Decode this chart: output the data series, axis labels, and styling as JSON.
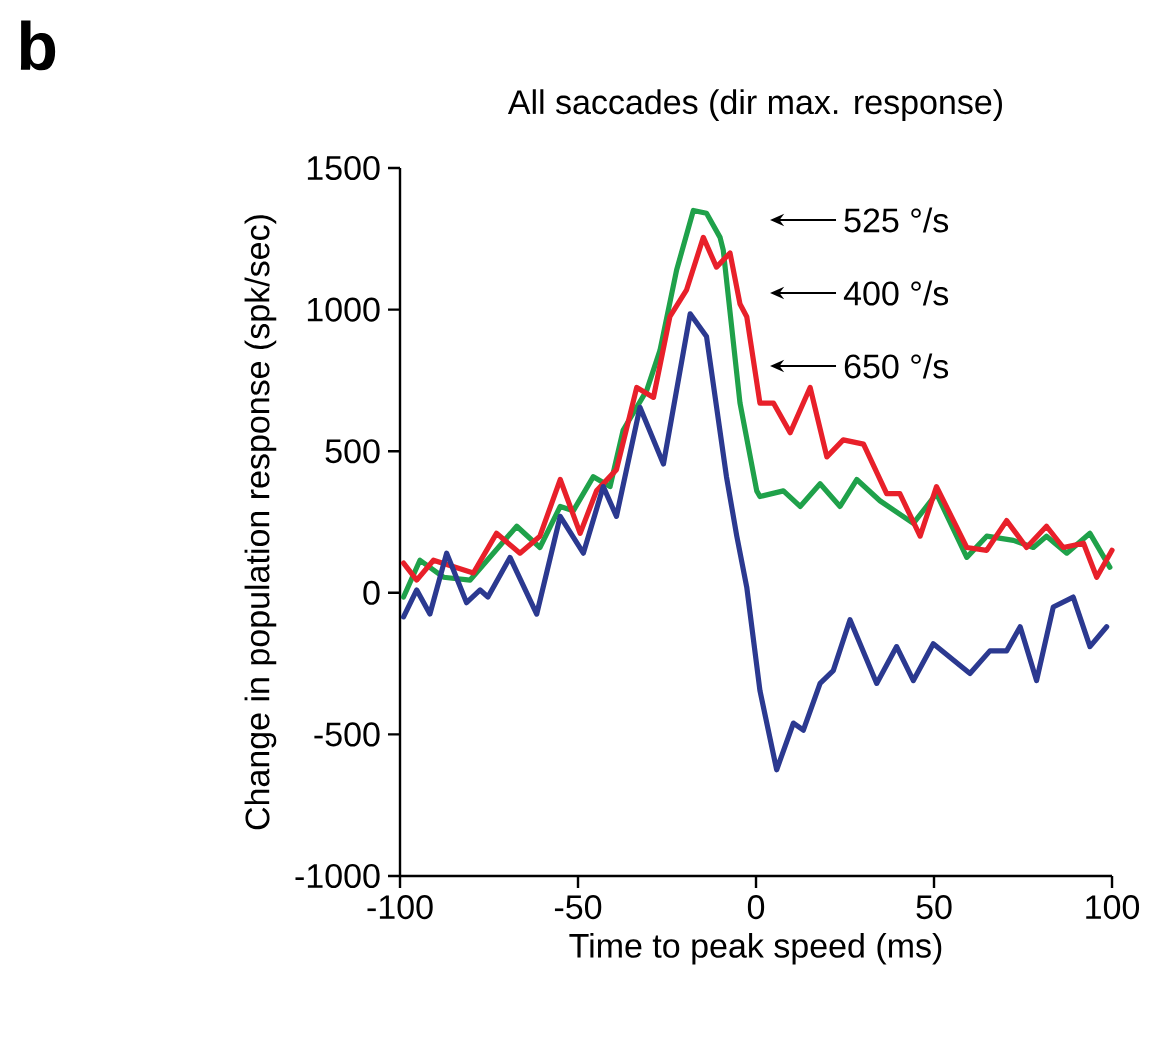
{
  "chart_data": {
    "type": "line",
    "title": "All saccades (dir max. response)",
    "xlabel": "Time to peak speed (ms)",
    "ylabel": "Change in population response (spk/sec)",
    "xlim": [
      -100,
      100
    ],
    "ylim": [
      -1000,
      1500
    ],
    "xticks": [
      -100,
      -50,
      0,
      50,
      100
    ],
    "yticks": [
      -1000,
      -500,
      0,
      500,
      1000,
      1500
    ],
    "grid": false,
    "marker": "none",
    "line_style": "solid",
    "annotations": [
      "b",
      "525 °/s",
      "400 °/s",
      "650 °/s"
    ],
    "series": [
      {
        "color": "#1fa14a",
        "x": [
          -99,
          -94.4,
          -87.8,
          -80.3,
          -67.2,
          -60.7,
          -55,
          -51.3,
          -45.7,
          -41,
          -37.3,
          -30.7,
          -27,
          -22.3,
          -17.6,
          -13.9,
          -10.1,
          -9.2,
          -4.5,
          0.2,
          1.1,
          7.7,
          12.4,
          18,
          23.6,
          28.3,
          34.8,
          44.2,
          50.7,
          59.2,
          64.8,
          72.3,
          77.9,
          81.6,
          87.3,
          93.8,
          99.4
        ],
        "values": [
          -15,
          115,
          55,
          45,
          235,
          160,
          305,
          290,
          410,
          375,
          575,
          715,
          855,
          1140,
          1350,
          1340,
          1255,
          1210,
          670,
          360,
          340,
          360,
          305,
          385,
          305,
          400,
          325,
          245,
          350,
          125,
          200,
          185,
          160,
          200,
          140,
          210,
          90
        ]
      },
      {
        "color": "#e8202a",
        "x": [
          -99,
          -95.3,
          -90.6,
          -79.4,
          -72.9,
          -66.3,
          -60.7,
          -55,
          -49.4,
          -44.8,
          -39.2,
          -33.5,
          -28.8,
          -24.2,
          -19.5,
          -14.8,
          -11.1,
          -7.3,
          -4.5,
          -2.6,
          1.1,
          4.9,
          9.6,
          15.2,
          19.9,
          24.5,
          30.2,
          36.7,
          40.4,
          46.1,
          50.7,
          59.2,
          64.8,
          70.4,
          76,
          81.6,
          86.3,
          92,
          95.7,
          100
        ],
        "values": [
          105,
          45,
          115,
          70,
          210,
          140,
          200,
          400,
          210,
          360,
          435,
          725,
          690,
          975,
          1070,
          1255,
          1150,
          1200,
          1020,
          975,
          670,
          670,
          565,
          725,
          480,
          540,
          525,
          350,
          350,
          200,
          375,
          160,
          150,
          255,
          160,
          235,
          160,
          175,
          55,
          150
        ]
      },
      {
        "color": "#2b3990",
        "x": [
          -99,
          -95.3,
          -91.6,
          -86.9,
          -81.3,
          -77.5,
          -75.3,
          -69.1,
          -61.6,
          -55,
          -48.5,
          -42.9,
          -39.2,
          -32.6,
          -26,
          -18.5,
          -13.9,
          -8.3,
          -5.4,
          -2.6,
          1.1,
          5.8,
          10.5,
          13.3,
          18,
          21.7,
          26.4,
          33.9,
          39.5,
          44.2,
          49.8,
          60.1,
          65.7,
          70.4,
          74.2,
          78.8,
          83.5,
          89.1,
          93.8,
          98.5
        ],
        "values": [
          -85,
          10,
          -75,
          140,
          -35,
          10,
          -15,
          125,
          -75,
          270,
          140,
          375,
          270,
          655,
          455,
          985,
          905,
          410,
          200,
          20,
          -345,
          -625,
          -460,
          -485,
          -320,
          -275,
          -95,
          -320,
          -190,
          -310,
          -180,
          -285,
          -205,
          -205,
          -120,
          -310,
          -50,
          -15,
          -190,
          -120
        ]
      }
    ]
  }
}
